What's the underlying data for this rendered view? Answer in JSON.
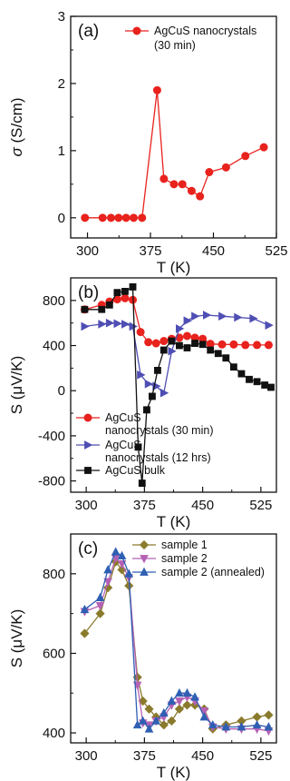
{
  "chart_data": [
    {
      "panel": "(a)",
      "type": "line",
      "xlabel": "T (K)",
      "ylabel_italic": "σ",
      "ylabel_rest": " (S/cm)",
      "xlim": [
        280,
        525
      ],
      "ylim": [
        -0.3,
        3
      ],
      "xticks": [
        300,
        375,
        450,
        525
      ],
      "yticks": [
        0,
        1,
        2,
        3
      ],
      "legend_placement": "top-right",
      "series": [
        {
          "name": "AgCuS nanocrystals",
          "name_line2": "(30 min)",
          "color": "#e8221d",
          "marker": "circle",
          "x": [
            297,
            318,
            328,
            337,
            346,
            355,
            365,
            383,
            391,
            403,
            413,
            424,
            434,
            445,
            465,
            488,
            510
          ],
          "y": [
            0.0,
            0.0,
            0.0,
            0.0,
            0.0,
            0.0,
            0.0,
            1.9,
            0.58,
            0.5,
            0.5,
            0.4,
            0.32,
            0.68,
            0.75,
            0.92,
            1.05
          ]
        }
      ]
    },
    {
      "panel": "(b)",
      "type": "line",
      "xlabel": "T (K)",
      "ylabel": "S (μV/K)",
      "xlim": [
        280,
        545
      ],
      "ylim": [
        -900,
        1000
      ],
      "xticks": [
        300,
        375,
        450,
        525
      ],
      "yticks": [
        -800,
        -400,
        0,
        400,
        800
      ],
      "legend_placement": "bottom-left",
      "series": [
        {
          "name": "AgCuS",
          "name_line2": "nanocrystals (30 min)",
          "color": "#e8221d",
          "marker": "circle",
          "x": [
            298,
            320,
            330,
            340,
            350,
            360,
            370,
            380,
            390,
            400,
            410,
            420,
            430,
            440,
            450,
            460,
            475,
            490,
            505,
            520,
            535
          ],
          "y": [
            720,
            760,
            790,
            810,
            820,
            805,
            520,
            430,
            420,
            440,
            460,
            470,
            485,
            470,
            460,
            415,
            410,
            410,
            405,
            405,
            405
          ]
        },
        {
          "name": "AgCuS",
          "name_line2": "nanocrystals (12 hrs)",
          "color": "#4e4eb4",
          "marker": "triangle-right",
          "x": [
            298,
            320,
            330,
            340,
            350,
            360,
            370,
            380,
            390,
            400,
            410,
            420,
            430,
            440,
            455,
            475,
            495,
            515,
            535
          ],
          "y": [
            570,
            590,
            600,
            595,
            590,
            570,
            140,
            60,
            40,
            -20,
            350,
            550,
            620,
            660,
            670,
            660,
            650,
            640,
            580
          ]
        },
        {
          "name": "AgCuS bulk",
          "color": "#111111",
          "marker": "square",
          "x": [
            298,
            320,
            330,
            340,
            350,
            360,
            367,
            372,
            378,
            385,
            392,
            400,
            410,
            420,
            430,
            440,
            450,
            460,
            470,
            480,
            490,
            500,
            510,
            520,
            530,
            538
          ],
          "y": [
            720,
            720,
            760,
            870,
            880,
            920,
            -500,
            -820,
            -170,
            -50,
            180,
            360,
            440,
            400,
            380,
            420,
            410,
            360,
            330,
            290,
            210,
            150,
            100,
            80,
            50,
            30
          ]
        }
      ]
    },
    {
      "panel": "(c)",
      "type": "line",
      "xlabel": "T (K)",
      "ylabel": "S (μV/K)",
      "xlim": [
        280,
        545
      ],
      "ylim": [
        375,
        900
      ],
      "xticks": [
        300,
        375,
        450,
        525
      ],
      "yticks": [
        400,
        600,
        800
      ],
      "legend_placement": "top-right",
      "series": [
        {
          "name": "sample 1",
          "color": "#8a7a2c",
          "marker": "diamond",
          "x": [
            298,
            318,
            328,
            338,
            346,
            355,
            366,
            373,
            381,
            390,
            400,
            410,
            420,
            430,
            440,
            452,
            463,
            480,
            500,
            520,
            535
          ],
          "y": [
            650,
            700,
            765,
            830,
            810,
            770,
            540,
            480,
            460,
            440,
            420,
            430,
            460,
            470,
            470,
            460,
            410,
            420,
            430,
            440,
            445
          ]
        },
        {
          "name": "sample 2",
          "color": "#b561b5",
          "marker": "triangle-down",
          "x": [
            298,
            318,
            328,
            338,
            346,
            355,
            366,
            373,
            381,
            390,
            400,
            410,
            420,
            430,
            440,
            452,
            463,
            480,
            500,
            520,
            535
          ],
          "y": [
            705,
            720,
            780,
            840,
            825,
            790,
            520,
            425,
            420,
            430,
            440,
            470,
            480,
            490,
            480,
            455,
            415,
            410,
            410,
            410,
            405
          ]
        },
        {
          "name": "sample 2 (annealed)",
          "color": "#2e5fb2",
          "marker": "triangle-up",
          "x": [
            298,
            318,
            328,
            338,
            346,
            355,
            366,
            373,
            381,
            390,
            400,
            410,
            420,
            430,
            440,
            452,
            463,
            480,
            500,
            520,
            535
          ],
          "y": [
            710,
            740,
            810,
            855,
            845,
            800,
            420,
            430,
            410,
            430,
            450,
            480,
            500,
            500,
            490,
            440,
            420,
            415,
            415,
            420,
            415
          ]
        }
      ]
    }
  ]
}
